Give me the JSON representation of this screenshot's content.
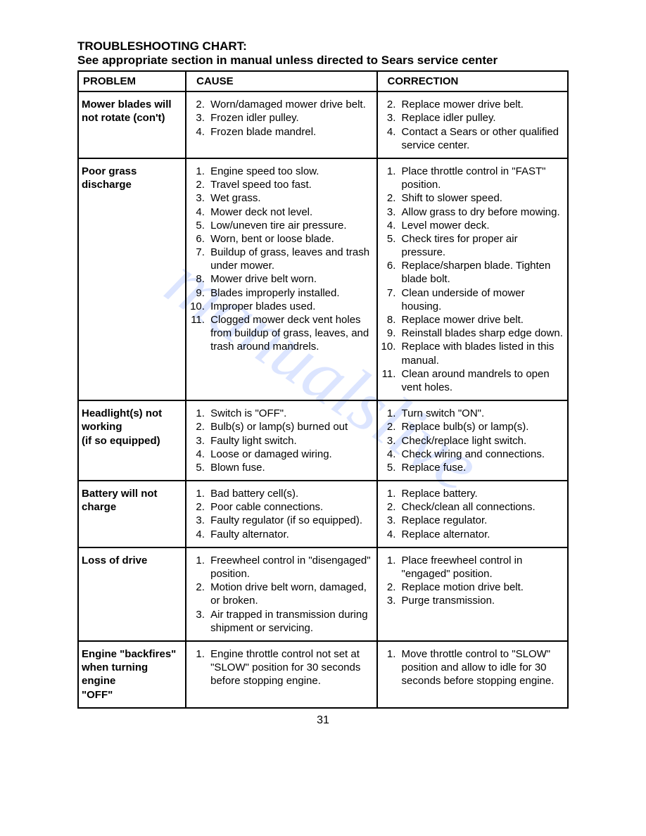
{
  "title1": "TROUBLESHOOTING CHART:",
  "title2": "See appropriate section in manual unless directed to Sears service center",
  "headers": {
    "problem": "PROBLEM",
    "cause": "CAUSE",
    "correction": "CORRECTION"
  },
  "watermark_text": "manualslive",
  "page_number": "31",
  "rows": [
    {
      "problem": "Mower blades will not rotate (con't)",
      "cause_start": 2,
      "cause": [
        "Worn/damaged mower drive belt.",
        "Frozen idler pulley.",
        "Frozen blade mandrel."
      ],
      "correction_start": 2,
      "correction": [
        "Replace mower drive belt.",
        "Replace idler pulley.",
        "Contact a Sears or other qualified service center."
      ]
    },
    {
      "problem": "Poor grass discharge",
      "cause_start": 1,
      "cause": [
        "Engine speed too slow.",
        "Travel speed too fast.",
        "Wet grass.",
        "Mower deck not level.",
        "Low/uneven tire air pressure.",
        "Worn, bent or loose blade.",
        "Buildup of grass, leaves and trash under mower.",
        "Mower drive belt worn.",
        "Blades improperly installed.",
        "Improper blades used.",
        "Clogged mower deck vent holes from buildup of grass, leaves, and trash around mandrels."
      ],
      "correction_start": 1,
      "correction": [
        "Place throttle control in \"FAST\" position.",
        "Shift to slower speed.",
        "Allow grass to dry before mowing.",
        "Level mower deck.",
        "Check tires for proper air pressure.",
        "Replace/sharpen blade. Tighten blade bolt.",
        "Clean underside of mower housing.",
        "Replace mower drive belt.",
        "Reinstall blades sharp edge down.",
        "Replace with blades listed in this manual.",
        "Clean around mandrels to open vent holes."
      ]
    },
    {
      "problem": "Headlight(s) not working\n(if so equipped)",
      "cause_start": 1,
      "cause": [
        "Switch is \"OFF\".",
        "Bulb(s) or lamp(s) burned out",
        "Faulty light switch.",
        "Loose or damaged wiring.",
        "Blown fuse."
      ],
      "correction_start": 1,
      "correction": [
        "Turn switch \"ON\".",
        "Replace bulb(s) or lamp(s).",
        "Check/replace light switch.",
        "Check wiring and connections.",
        "Replace fuse."
      ]
    },
    {
      "problem": "Battery will not charge",
      "cause_start": 1,
      "cause": [
        "Bad battery cell(s).",
        "Poor cable connections.",
        "Faulty regulator (if so equipped).",
        "Faulty alternator."
      ],
      "correction_start": 1,
      "correction": [
        "Replace battery.",
        "Check/clean all connections.",
        "Replace regulator.",
        "Replace alternator."
      ]
    },
    {
      "problem": "Loss of drive",
      "cause_start": 1,
      "cause": [
        "Freewheel control in \"disengaged\" position.",
        "Motion drive belt worn, damaged, or broken.",
        "Air trapped in transmission during shipment or servicing."
      ],
      "correction_start": 1,
      "correction": [
        "Place freewheel control in \"engaged\" position.",
        "Replace motion drive belt.",
        "Purge transmission."
      ]
    },
    {
      "problem": "Engine \"backfires\" when turning engine\n\"OFF\"",
      "cause_start": 1,
      "cause": [
        "Engine throttle control not set at \"SLOW\" position for 30 seconds before stopping engine."
      ],
      "correction_start": 1,
      "correction": [
        "Move throttle control to \"SLOW\" position and allow to idle for 30 seconds before stopping engine."
      ]
    }
  ],
  "colors": {
    "text": "#000000",
    "background": "#ffffff",
    "border": "#000000",
    "watermark": "#9cb6ff"
  }
}
